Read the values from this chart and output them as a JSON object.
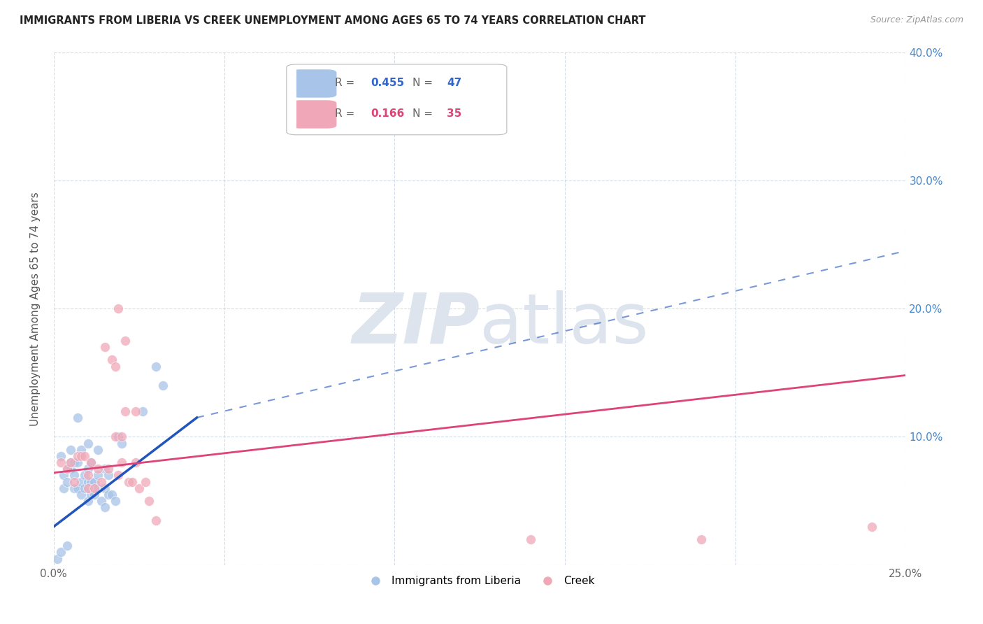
{
  "title": "IMMIGRANTS FROM LIBERIA VS CREEK UNEMPLOYMENT AMONG AGES 65 TO 74 YEARS CORRELATION CHART",
  "source": "Source: ZipAtlas.com",
  "ylabel": "Unemployment Among Ages 65 to 74 years",
  "xlim": [
    0.0,
    0.25
  ],
  "ylim": [
    0.0,
    0.4
  ],
  "legend_liberia_R": "0.455",
  "legend_liberia_N": "47",
  "legend_creek_R": "0.166",
  "legend_creek_N": "35",
  "blue_color": "#a8c4e8",
  "pink_color": "#f0a8b8",
  "blue_line_color": "#2255bb",
  "pink_line_color": "#dd4477",
  "blue_line_solid": [
    [
      0.0,
      0.03
    ],
    [
      0.042,
      0.115
    ]
  ],
  "blue_line_dashed": [
    [
      0.042,
      0.115
    ],
    [
      0.25,
      0.245
    ]
  ],
  "pink_line": [
    [
      0.0,
      0.072
    ],
    [
      0.25,
      0.148
    ]
  ],
  "blue_scatter": [
    [
      0.001,
      0.005
    ],
    [
      0.002,
      0.01
    ],
    [
      0.002,
      0.085
    ],
    [
      0.003,
      0.06
    ],
    [
      0.003,
      0.07
    ],
    [
      0.004,
      0.015
    ],
    [
      0.004,
      0.065
    ],
    [
      0.004,
      0.075
    ],
    [
      0.005,
      0.075
    ],
    [
      0.005,
      0.08
    ],
    [
      0.005,
      0.09
    ],
    [
      0.006,
      0.06
    ],
    [
      0.006,
      0.07
    ],
    [
      0.006,
      0.08
    ],
    [
      0.007,
      0.06
    ],
    [
      0.007,
      0.08
    ],
    [
      0.007,
      0.115
    ],
    [
      0.008,
      0.055
    ],
    [
      0.008,
      0.065
    ],
    [
      0.008,
      0.09
    ],
    [
      0.009,
      0.06
    ],
    [
      0.009,
      0.07
    ],
    [
      0.01,
      0.05
    ],
    [
      0.01,
      0.065
    ],
    [
      0.01,
      0.075
    ],
    [
      0.01,
      0.095
    ],
    [
      0.011,
      0.055
    ],
    [
      0.011,
      0.065
    ],
    [
      0.011,
      0.08
    ],
    [
      0.012,
      0.055
    ],
    [
      0.012,
      0.065
    ],
    [
      0.013,
      0.06
    ],
    [
      0.013,
      0.07
    ],
    [
      0.013,
      0.09
    ],
    [
      0.014,
      0.05
    ],
    [
      0.015,
      0.045
    ],
    [
      0.015,
      0.06
    ],
    [
      0.015,
      0.075
    ],
    [
      0.016,
      0.055
    ],
    [
      0.016,
      0.07
    ],
    [
      0.017,
      0.055
    ],
    [
      0.018,
      0.05
    ],
    [
      0.019,
      0.1
    ],
    [
      0.02,
      0.095
    ],
    [
      0.026,
      0.12
    ],
    [
      0.03,
      0.155
    ],
    [
      0.032,
      0.14
    ]
  ],
  "pink_scatter": [
    [
      0.002,
      0.08
    ],
    [
      0.004,
      0.075
    ],
    [
      0.005,
      0.08
    ],
    [
      0.006,
      0.065
    ],
    [
      0.007,
      0.085
    ],
    [
      0.008,
      0.085
    ],
    [
      0.009,
      0.085
    ],
    [
      0.01,
      0.07
    ],
    [
      0.01,
      0.06
    ],
    [
      0.011,
      0.08
    ],
    [
      0.012,
      0.06
    ],
    [
      0.013,
      0.075
    ],
    [
      0.014,
      0.065
    ],
    [
      0.015,
      0.17
    ],
    [
      0.016,
      0.075
    ],
    [
      0.017,
      0.16
    ],
    [
      0.018,
      0.155
    ],
    [
      0.018,
      0.1
    ],
    [
      0.019,
      0.07
    ],
    [
      0.019,
      0.2
    ],
    [
      0.02,
      0.1
    ],
    [
      0.02,
      0.08
    ],
    [
      0.021,
      0.175
    ],
    [
      0.021,
      0.12
    ],
    [
      0.022,
      0.065
    ],
    [
      0.023,
      0.065
    ],
    [
      0.024,
      0.12
    ],
    [
      0.024,
      0.08
    ],
    [
      0.025,
      0.06
    ],
    [
      0.027,
      0.065
    ],
    [
      0.028,
      0.05
    ],
    [
      0.14,
      0.02
    ],
    [
      0.19,
      0.02
    ],
    [
      0.24,
      0.03
    ],
    [
      0.03,
      0.035
    ]
  ],
  "background_color": "#ffffff",
  "grid_color": "#c8d4e4",
  "watermark_zip": "ZIP",
  "watermark_atlas": "atlas",
  "watermark_color": "#dde4ee"
}
